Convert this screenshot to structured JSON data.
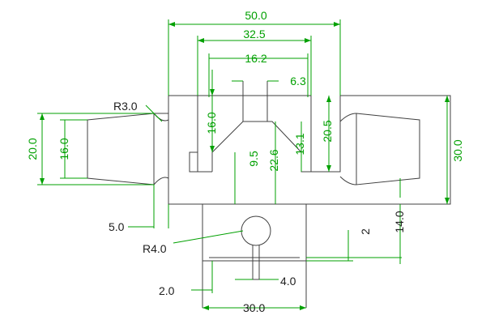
{
  "drawing": {
    "dimensions": {
      "overall_width": "50.0",
      "slot_width": "32.5",
      "inner_width": "16.2",
      "step_width": "6.3",
      "left_height": "16.0",
      "depth_9_5": "9.5",
      "depth_22_6": "22.6",
      "depth_13_1": "13.1",
      "right_notch": "20.5",
      "total_height": "30.0",
      "left_outer": "20.0",
      "left_inner": "16.0",
      "radius_top": "R3.0",
      "offset_5": "5.0",
      "radius_bottom": "R4.0",
      "bottom_2_0": "2.0",
      "bottom_4_0": "4.0",
      "bottom_width": "30.0",
      "small_2": "2",
      "depth_14_0": "14.0"
    },
    "colors": {
      "part_line": "#404040",
      "dimension_line": "#00a000",
      "background": "#ffffff"
    }
  }
}
